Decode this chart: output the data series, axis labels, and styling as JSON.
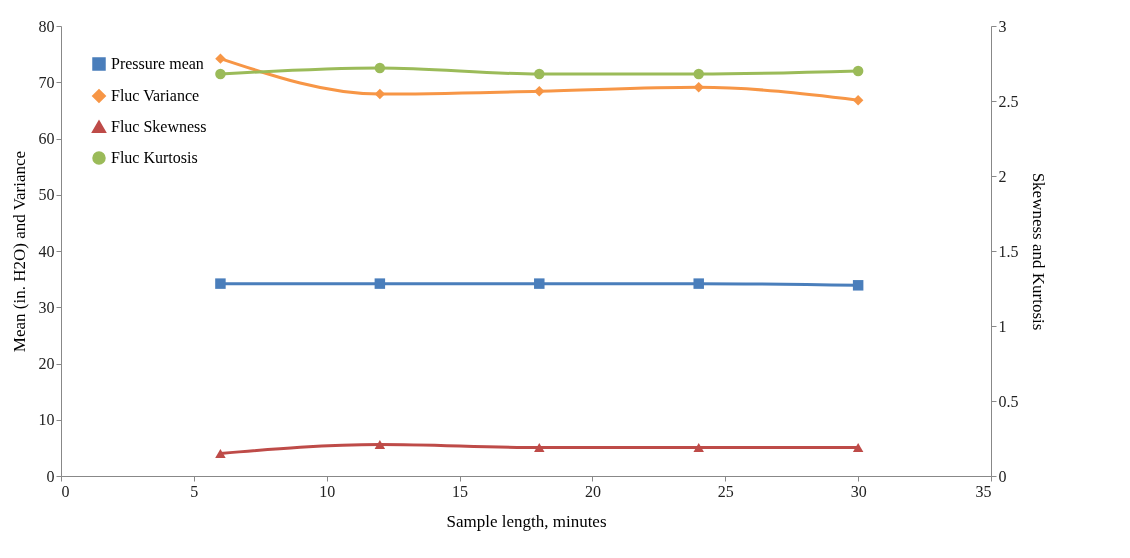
{
  "chart_data": {
    "type": "line",
    "xlabel": "Sample length, minutes",
    "ylabel": "Mean (in. H2O) and Variance",
    "y2label": "Skewness and Kurtosis",
    "x": [
      6,
      12,
      18,
      24,
      30
    ],
    "xlim": [
      0,
      35
    ],
    "xticks": [
      0,
      5,
      10,
      15,
      20,
      25,
      30,
      35
    ],
    "ylim": [
      0,
      80
    ],
    "yticks": [
      0,
      10,
      20,
      30,
      40,
      50,
      60,
      70,
      80
    ],
    "y2lim": [
      0,
      3
    ],
    "y2ticks": [
      0,
      0.5,
      1,
      1.5,
      2,
      2.5,
      3
    ],
    "grid": false,
    "legend": "top left",
    "series": [
      {
        "name": "Pressure mean",
        "color": "#4a7ebb",
        "marker": "square",
        "values": [
          34.2,
          34.2,
          34.2,
          34.2,
          33.9
        ]
      },
      {
        "name": "Fluc Variance",
        "color": "#f79646",
        "marker": "diamond",
        "values": [
          74.2,
          67.9,
          68.4,
          69.1,
          66.8
        ]
      },
      {
        "name": "Fluc Skewness",
        "color": "#be4b48",
        "marker": "triangle",
        "axis": "y2",
        "values": [
          0.15,
          0.21,
          0.19,
          0.19,
          0.19
        ]
      },
      {
        "name": "Fluc Kurtosis",
        "color": "#9bbb59",
        "marker": "circle",
        "axis": "y2",
        "values": [
          2.68,
          2.72,
          2.68,
          2.68,
          2.7
        ]
      }
    ]
  }
}
